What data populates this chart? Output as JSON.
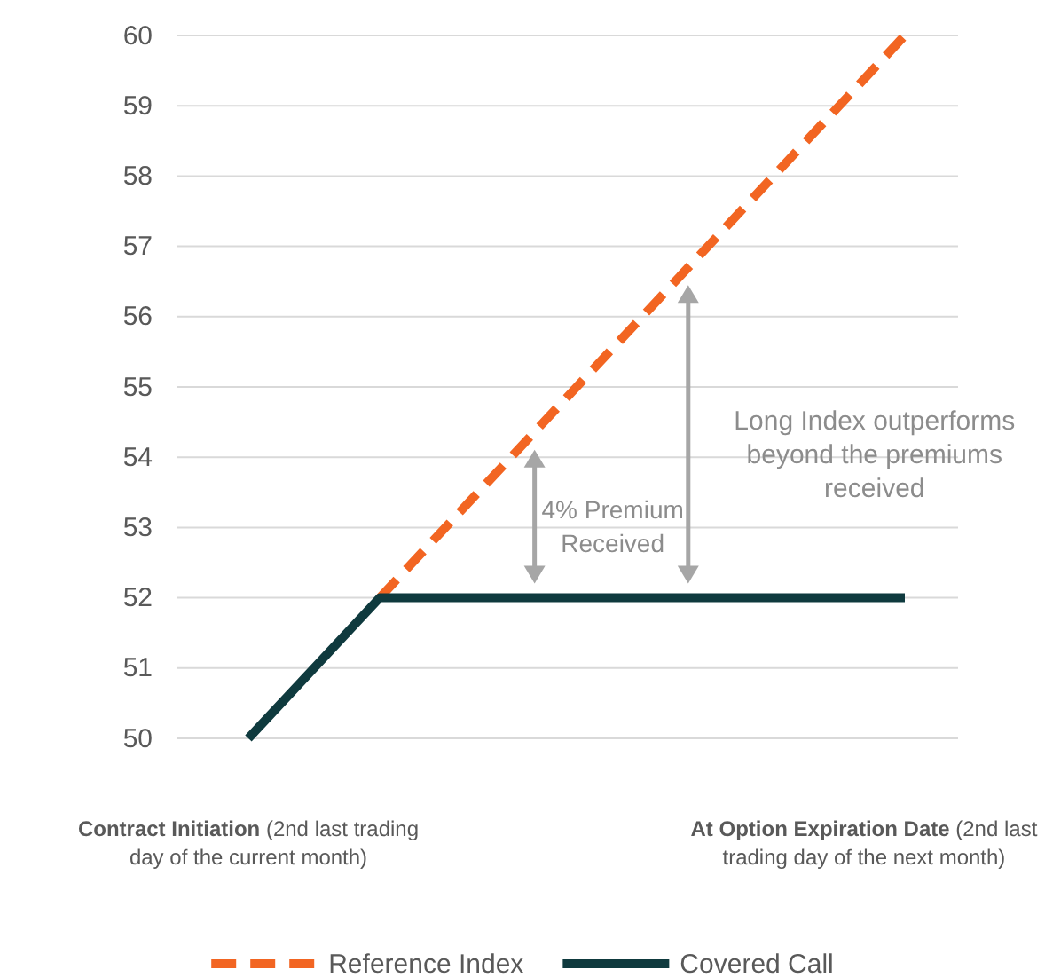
{
  "chart_data": {
    "type": "line",
    "categories": [
      "Contract Initiation (2nd last trading day of the current month)",
      null,
      null,
      null,
      null,
      "At Option Expiration Date (2nd last trading day of the next month)"
    ],
    "series": [
      {
        "name": "Reference Index",
        "color": "#f26522",
        "line_style": "dashed",
        "values": [
          null,
          52,
          54,
          56,
          58,
          60
        ]
      },
      {
        "name": "Covered Call",
        "color": "#0f3a3e",
        "line_style": "solid",
        "values": [
          50,
          52,
          52,
          52,
          52,
          52
        ]
      }
    ],
    "ylim": [
      50,
      60
    ],
    "yticks": [
      50,
      51,
      52,
      53,
      54,
      55,
      56,
      57,
      58,
      59,
      60
    ],
    "grid": "y",
    "legend": "bottom",
    "marker": "none",
    "annotations": [
      "4% Premium Received",
      "Long Index outperforms beyond the premiums received"
    ]
  }
}
